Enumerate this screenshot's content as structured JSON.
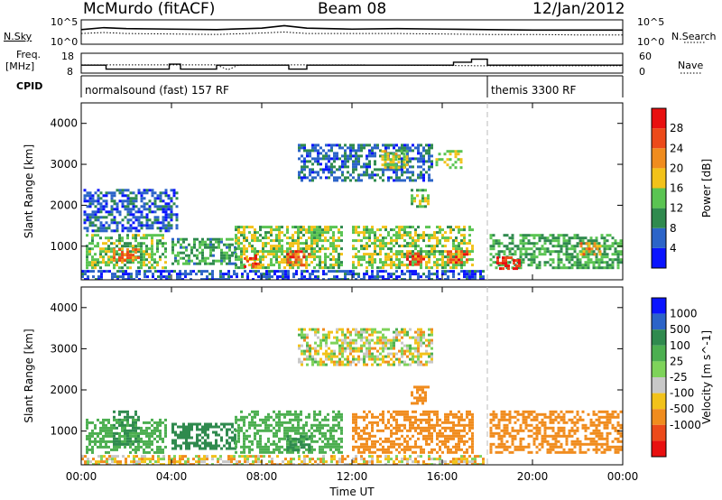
{
  "header": {
    "station": "McMurdo (fitACF)",
    "beam": "Beam 08",
    "date": "12/Jan/2012"
  },
  "left_labels": {
    "nsky": "N.Sky",
    "freq": "Freq.",
    "freq_unit": "[MHz]",
    "cpid": "CPID"
  },
  "right_labels": {
    "nsearch": "N.Search",
    "nave": "Nave"
  },
  "noise_axis": {
    "left_top": "10^5",
    "left_bottom": "10^0",
    "right_top": "10^5",
    "right_bottom": "10^0"
  },
  "freq_axis": {
    "left_top": "18",
    "left_bottom": "8",
    "right_top": "60",
    "right_bottom": "0"
  },
  "cpid_segments": [
    {
      "label": "normalsound (fast) 157 RF",
      "start_hour": 0,
      "end_hour": 18.0
    },
    {
      "label": "themis 3300 RF",
      "start_hour": 18.0,
      "end_hour": 24
    }
  ],
  "colors": {
    "power": [
      "#0a14ff",
      "#2c64c8",
      "#2f8a4e",
      "#5ac452",
      "#f2c21a",
      "#f08c1e",
      "#ec4a1a",
      "#e81010"
    ],
    "velocity": [
      "#e81010",
      "#ec4a1a",
      "#f08c1e",
      "#f2c21a",
      "#c8c8c8",
      "#7ed35a",
      "#4caf50",
      "#2f8a4e",
      "#2c64c8",
      "#0a14ff"
    ]
  },
  "chart_data": [
    {
      "type": "line",
      "title": "",
      "series": [
        {
          "name": "N.Sky",
          "style": "solid",
          "x": [
            0,
            1,
            2,
            4,
            6,
            8,
            9,
            10,
            12,
            14,
            16,
            18,
            20,
            22,
            24
          ],
          "values_log10": [
            3.0,
            3.4,
            3.2,
            3.1,
            3.0,
            3.3,
            3.8,
            3.3,
            3.1,
            3.2,
            3.1,
            3.0,
            2.9,
            2.9,
            2.9
          ]
        },
        {
          "name": "N.Search",
          "style": "dotted",
          "x": [
            0,
            1,
            2,
            4,
            6,
            8,
            9,
            10,
            12,
            14,
            16,
            18,
            20,
            22,
            24
          ],
          "values_log10": [
            2.2,
            2.4,
            2.2,
            2.1,
            2.0,
            2.3,
            2.5,
            2.2,
            2.2,
            2.2,
            2.1,
            2.0,
            2.0,
            1.9,
            1.9
          ]
        }
      ]
    },
    {
      "type": "line",
      "title": "",
      "series": [
        {
          "name": "Freq.",
          "style": "solid",
          "unit": "MHz",
          "x": [
            0,
            1.1,
            1.1,
            3.9,
            3.9,
            4.4,
            4.4,
            6.0,
            6.0,
            9.2,
            9.2,
            10.0,
            10.0,
            16.5,
            16.5,
            17.3,
            17.3,
            18.0,
            18.0,
            24
          ],
          "values": [
            12.0,
            12.0,
            10.0,
            10.0,
            12.5,
            12.5,
            10.0,
            10.0,
            12.0,
            12.0,
            10.0,
            10.0,
            12.0,
            12.0,
            13.5,
            13.5,
            15.0,
            15.0,
            12.0,
            12.0
          ]
        },
        {
          "name": "Nave",
          "style": "dotted",
          "x": [
            0,
            6,
            6.5,
            7,
            8,
            12,
            18,
            18.5,
            24
          ],
          "values": [
            25,
            25,
            10,
            25,
            25,
            25,
            22,
            22,
            22
          ]
        }
      ]
    },
    {
      "type": "heatmap",
      "title": "",
      "quantity": "Power",
      "xlabel": "",
      "ylabel": "Slant Range [km]",
      "x_tick_labels": [
        "00:00",
        "04:00",
        "08:00",
        "12:00",
        "16:00",
        "20:00",
        "00:00"
      ],
      "y_ticks": [
        1000,
        2000,
        3000,
        4000
      ],
      "xlim_hours": [
        0,
        24
      ],
      "ylim_km": [
        180,
        4500
      ],
      "colorbar": {
        "label": "Power [dB]",
        "ticks": [
          4,
          8,
          12,
          16,
          20,
          24,
          28
        ],
        "range": [
          0,
          32
        ]
      },
      "echo_regions": [
        {
          "t0": 0.0,
          "t1": 17.8,
          "r0": 180,
          "r1": 420,
          "level": 5
        },
        {
          "t0": 0.2,
          "t1": 3.8,
          "r0": 500,
          "r1": 1300,
          "level": 14
        },
        {
          "t0": 1.4,
          "t1": 2.6,
          "r0": 650,
          "r1": 950,
          "level": 24
        },
        {
          "t0": 4.0,
          "t1": 6.8,
          "r0": 550,
          "r1": 1200,
          "level": 11
        },
        {
          "t0": 6.8,
          "t1": 11.6,
          "r0": 500,
          "r1": 1500,
          "level": 15
        },
        {
          "t0": 7.2,
          "t1": 7.9,
          "r0": 520,
          "r1": 800,
          "level": 27
        },
        {
          "t0": 9.1,
          "t1": 10.1,
          "r0": 550,
          "r1": 900,
          "level": 26
        },
        {
          "t0": 12.0,
          "t1": 17.4,
          "r0": 500,
          "r1": 1500,
          "level": 15
        },
        {
          "t0": 14.4,
          "t1": 15.2,
          "r0": 550,
          "r1": 850,
          "level": 27
        },
        {
          "t0": 16.2,
          "t1": 17.1,
          "r0": 600,
          "r1": 900,
          "level": 26
        },
        {
          "t0": 0.1,
          "t1": 4.2,
          "r0": 1400,
          "r1": 2400,
          "level": 6
        },
        {
          "t0": 9.6,
          "t1": 15.6,
          "r0": 2600,
          "r1": 3500,
          "level": 7
        },
        {
          "t0": 13.3,
          "t1": 14.4,
          "r0": 2950,
          "r1": 3350,
          "level": 17
        },
        {
          "t0": 15.7,
          "t1": 16.9,
          "r0": 2900,
          "r1": 3350,
          "level": 16
        },
        {
          "t0": 14.6,
          "t1": 15.4,
          "r0": 2000,
          "r1": 2400,
          "level": 14
        },
        {
          "t0": 18.1,
          "t1": 23.9,
          "r0": 500,
          "r1": 1300,
          "level": 12
        },
        {
          "t0": 18.4,
          "t1": 19.4,
          "r0": 450,
          "r1": 750,
          "level": 28
        },
        {
          "t0": 22.1,
          "t1": 23.0,
          "r0": 800,
          "r1": 1100,
          "level": 22
        }
      ]
    },
    {
      "type": "heatmap",
      "title": "",
      "quantity": "Velocity",
      "xlabel": "Time UT",
      "ylabel": "Slant Range [km]",
      "x_tick_labels": [
        "00:00",
        "04:00",
        "08:00",
        "12:00",
        "16:00",
        "20:00",
        "00:00"
      ],
      "y_ticks": [
        1000,
        2000,
        3000,
        4000
      ],
      "xlim_hours": [
        0,
        24
      ],
      "ylim_km": [
        180,
        4500
      ],
      "colorbar": {
        "label": "Velocity [m s^-1]",
        "ticks": [
          1000,
          500,
          100,
          25,
          -25,
          -100,
          -500,
          -1000
        ]
      },
      "echo_regions": [
        {
          "t0": 0.0,
          "t1": 17.8,
          "r0": 180,
          "r1": 420,
          "level": -60
        },
        {
          "t0": 0.2,
          "t1": 3.8,
          "r0": 500,
          "r1": 1300,
          "level": 300
        },
        {
          "t0": 1.4,
          "t1": 2.6,
          "r0": 650,
          "r1": 1500,
          "level": 600
        },
        {
          "t0": 4.0,
          "t1": 6.8,
          "r0": 550,
          "r1": 1200,
          "level": 700
        },
        {
          "t0": 6.8,
          "t1": 11.6,
          "r0": 500,
          "r1": 1500,
          "level": 300
        },
        {
          "t0": 9.1,
          "t1": 10.1,
          "r0": 550,
          "r1": 900,
          "level": 800
        },
        {
          "t0": 12.0,
          "t1": 17.4,
          "r0": 500,
          "r1": 1500,
          "level": -300
        },
        {
          "t0": 9.6,
          "t1": 15.6,
          "r0": 2600,
          "r1": 3500,
          "level": 0
        },
        {
          "t0": 14.6,
          "t1": 15.4,
          "r0": 1700,
          "r1": 2100,
          "level": -300
        },
        {
          "t0": 18.1,
          "t1": 23.9,
          "r0": 500,
          "r1": 1500,
          "level": -300
        }
      ]
    }
  ]
}
